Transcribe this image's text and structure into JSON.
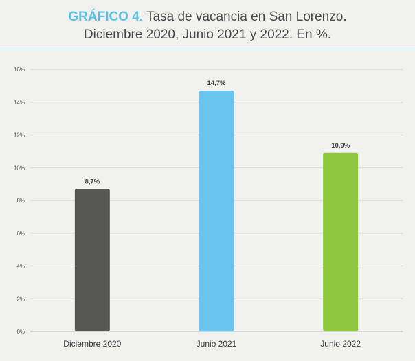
{
  "title": {
    "prefix": "GRÁFICO 4.",
    "line1": "Tasa de vacancia en San Lorenzo.",
    "line2": "Diciembre 2020, Junio 2021 y 2022. En %."
  },
  "chart_data": {
    "type": "bar",
    "title": "GRÁFICO 4. Tasa de vacancia en San Lorenzo. Diciembre 2020, Junio 2021 y 2022. En %.",
    "categories": [
      "Diciembre 2020",
      "Junio 2021",
      "Junio 2022"
    ],
    "values": [
      8.7,
      14.7,
      10.9
    ],
    "data_labels": [
      "8,7%",
      "14,7%",
      "10,9%"
    ],
    "colors": [
      "#575756",
      "#6ac6ee",
      "#8dc63f"
    ],
    "ylim": [
      0,
      16
    ],
    "yticks": [
      0,
      2,
      4,
      6,
      8,
      10,
      12,
      14,
      16
    ],
    "ytick_labels": [
      "0%",
      "2%",
      "4%",
      "6%",
      "8%",
      "10%",
      "12%",
      "14%",
      "16%"
    ],
    "grid": true,
    "xlabel": "",
    "ylabel": ""
  }
}
